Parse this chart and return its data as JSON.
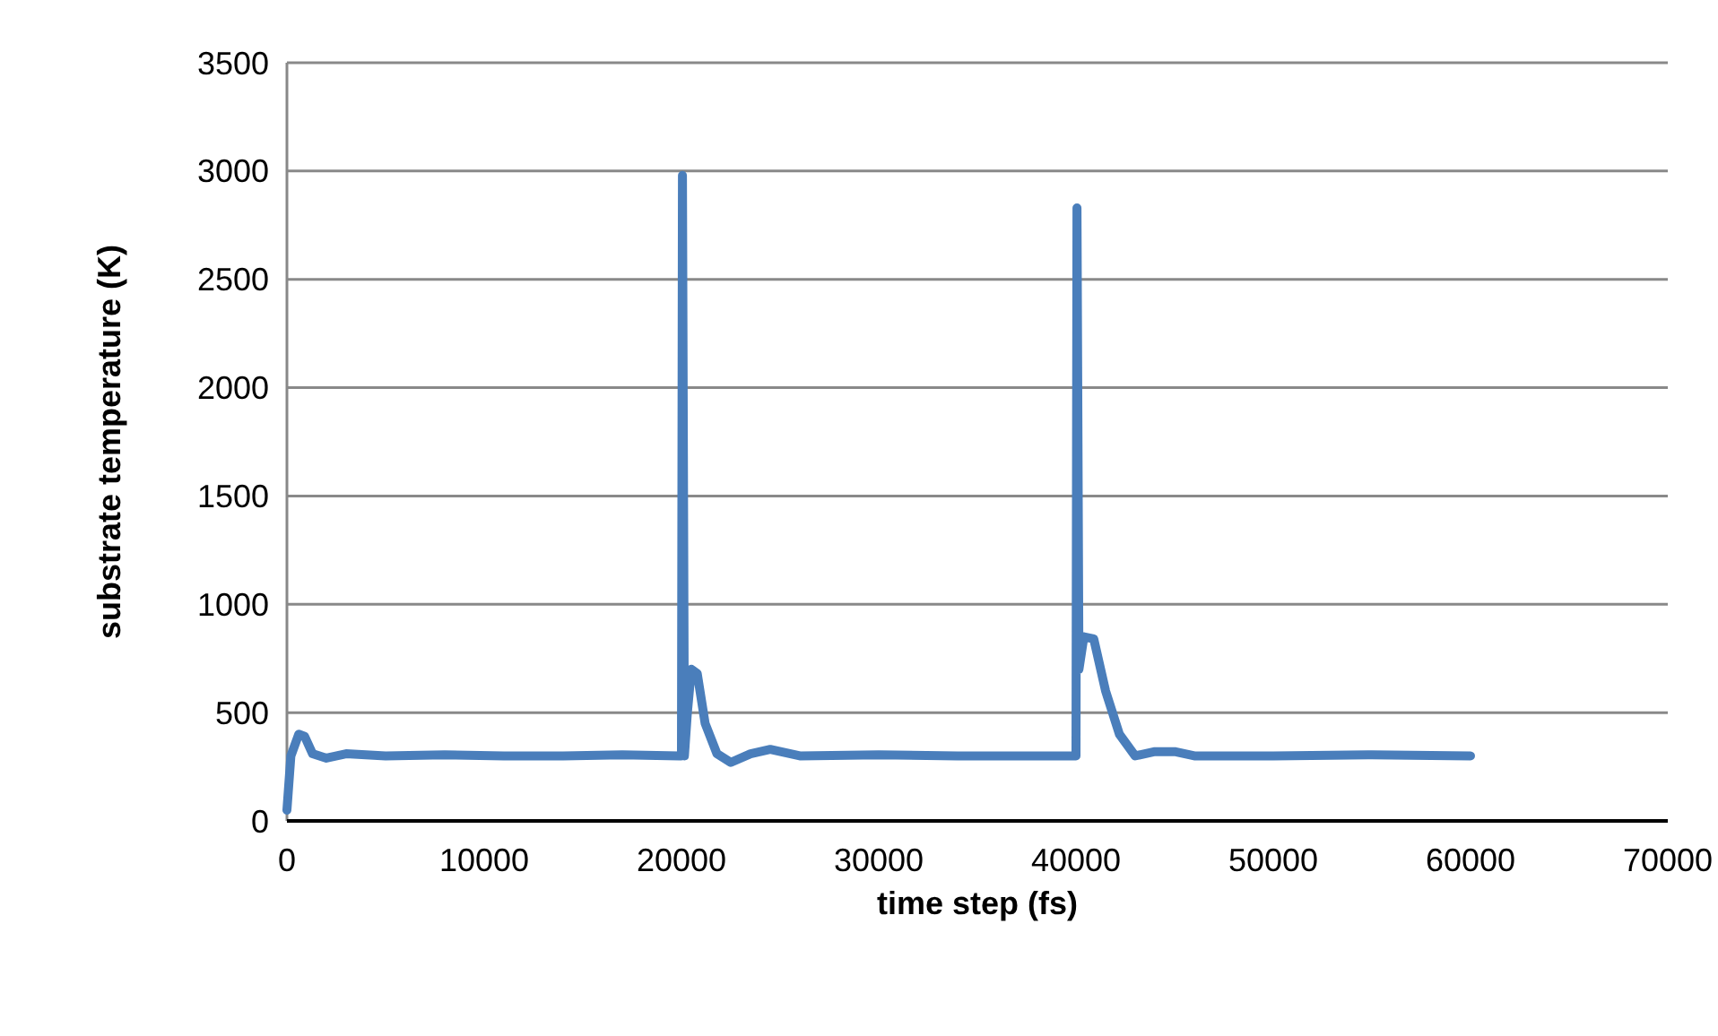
{
  "chart_data": {
    "type": "line",
    "xlabel": "time step (fs)",
    "ylabel": "substrate temperature (K)",
    "xlim": [
      0,
      70000
    ],
    "xticks": [
      0,
      10000,
      20000,
      30000,
      40000,
      50000,
      60000,
      70000
    ],
    "ylim": [
      0,
      3500
    ],
    "yticks": [
      0,
      500,
      1000,
      1500,
      2000,
      2500,
      3000,
      3500
    ],
    "grid": "y",
    "marker": "none",
    "line_style": "solid",
    "series": [
      {
        "color": "#4a7ebb",
        "x": [
          0,
          200,
          600,
          900,
          1300,
          2000,
          3000,
          5000,
          8000,
          11000,
          14000,
          17000,
          19900,
          20000,
          20050,
          20150,
          20300,
          20500,
          20800,
          21200,
          21800,
          22500,
          23500,
          24500,
          26000,
          30000,
          34000,
          37000,
          39900,
          40000,
          40050,
          40150,
          40400,
          40900,
          41500,
          42200,
          43000,
          44000,
          45000,
          46000,
          50000,
          55000,
          60000
        ],
        "values": [
          50,
          300,
          400,
          390,
          310,
          290,
          310,
          300,
          305,
          300,
          300,
          305,
          300,
          300,
          2980,
          300,
          500,
          700,
          680,
          450,
          310,
          270,
          310,
          330,
          300,
          305,
          300,
          300,
          300,
          300,
          2830,
          700,
          850,
          840,
          600,
          400,
          300,
          320,
          320,
          300,
          300,
          305,
          300
        ]
      }
    ]
  }
}
